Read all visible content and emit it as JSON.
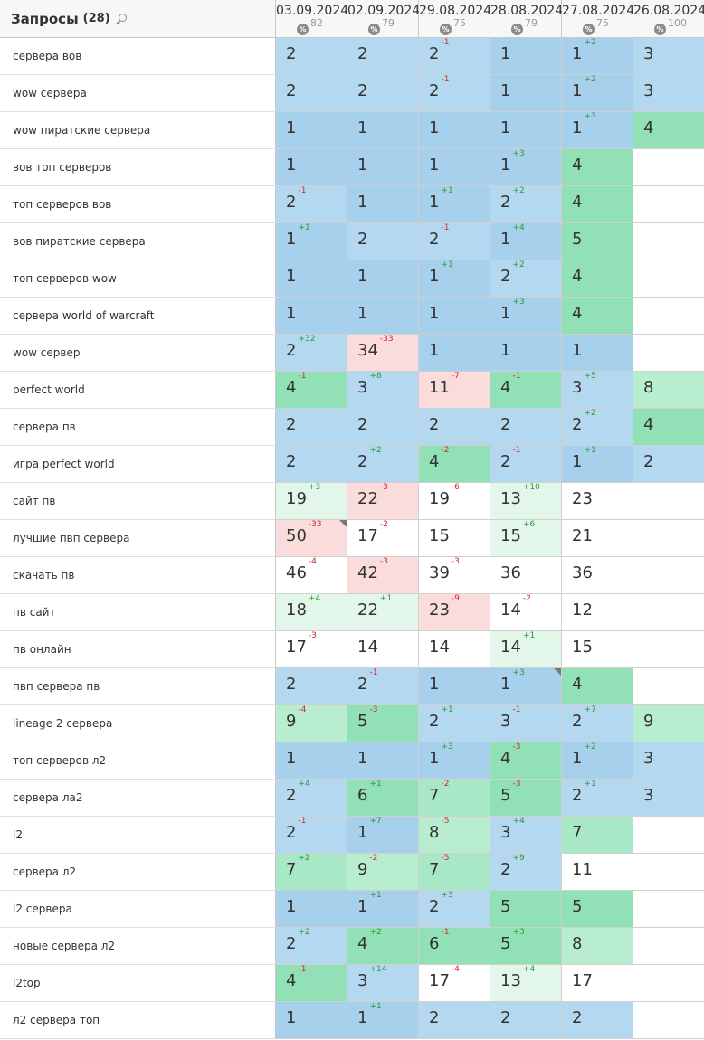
{
  "header": {
    "title": "Запросы",
    "count": "(28)",
    "dates": [
      {
        "date": "03.09.2024",
        "pct": "82"
      },
      {
        "date": "02.09.2024",
        "pct": "79"
      },
      {
        "date": "29.08.2024",
        "pct": "75"
      },
      {
        "date": "28.08.2024",
        "pct": "79"
      },
      {
        "date": "27.08.2024",
        "pct": "75"
      },
      {
        "date": "26.08.2024",
        "pct": "100"
      }
    ]
  },
  "rows": [
    {
      "q": "сервера вов",
      "cells": [
        {
          "v": "2",
          "bg": "c2"
        },
        {
          "v": "2",
          "bg": "c2"
        },
        {
          "v": "2",
          "ch": "-1",
          "dir": "dn",
          "bg": "c2"
        },
        {
          "v": "1",
          "bg": "c1"
        },
        {
          "v": "1",
          "ch": "+2",
          "dir": "up",
          "bg": "c1"
        },
        {
          "v": "3",
          "bg": "c2"
        }
      ]
    },
    {
      "q": "wow сервера",
      "cells": [
        {
          "v": "2",
          "bg": "c2"
        },
        {
          "v": "2",
          "bg": "c2"
        },
        {
          "v": "2",
          "ch": "-1",
          "dir": "dn",
          "bg": "c2"
        },
        {
          "v": "1",
          "bg": "c1"
        },
        {
          "v": "1",
          "ch": "+2",
          "dir": "up",
          "bg": "c1"
        },
        {
          "v": "3",
          "bg": "c2"
        }
      ]
    },
    {
      "q": "wow пиратские сервера",
      "cells": [
        {
          "v": "1",
          "bg": "c1"
        },
        {
          "v": "1",
          "bg": "c1"
        },
        {
          "v": "1",
          "bg": "c1"
        },
        {
          "v": "1",
          "bg": "c1"
        },
        {
          "v": "1",
          "ch": "+3",
          "dir": "up",
          "bg": "c1"
        },
        {
          "v": "4",
          "bg": "c3"
        }
      ]
    },
    {
      "q": "вов топ серверов",
      "cells": [
        {
          "v": "1",
          "bg": "c1"
        },
        {
          "v": "1",
          "bg": "c1"
        },
        {
          "v": "1",
          "bg": "c1"
        },
        {
          "v": "1",
          "ch": "+3",
          "dir": "up",
          "bg": "c1"
        },
        {
          "v": "4",
          "bg": "c3"
        },
        {
          "v": "",
          "bg": "c8"
        }
      ]
    },
    {
      "q": "топ серверов вов",
      "cells": [
        {
          "v": "2",
          "ch": "-1",
          "dir": "dn",
          "bg": "c2"
        },
        {
          "v": "1",
          "bg": "c1"
        },
        {
          "v": "1",
          "ch": "+1",
          "dir": "up",
          "bg": "c1"
        },
        {
          "v": "2",
          "ch": "+2",
          "dir": "up",
          "bg": "c2"
        },
        {
          "v": "4",
          "bg": "c3"
        },
        {
          "v": "",
          "bg": "c8"
        }
      ]
    },
    {
      "q": "вов пиратские сервера",
      "cells": [
        {
          "v": "1",
          "ch": "+1",
          "dir": "up",
          "bg": "c1"
        },
        {
          "v": "2",
          "bg": "c2"
        },
        {
          "v": "2",
          "ch": "-1",
          "dir": "dn",
          "bg": "c2"
        },
        {
          "v": "1",
          "ch": "+4",
          "dir": "up",
          "bg": "c1"
        },
        {
          "v": "5",
          "bg": "c3"
        },
        {
          "v": "",
          "bg": "c8"
        }
      ]
    },
    {
      "q": "топ серверов wow",
      "cells": [
        {
          "v": "1",
          "bg": "c1"
        },
        {
          "v": "1",
          "bg": "c1"
        },
        {
          "v": "1",
          "ch": "+1",
          "dir": "up",
          "bg": "c1"
        },
        {
          "v": "2",
          "ch": "+2",
          "dir": "up",
          "bg": "c2"
        },
        {
          "v": "4",
          "bg": "c3"
        },
        {
          "v": "",
          "bg": "c8"
        }
      ]
    },
    {
      "q": "сервера world of warcraft",
      "cells": [
        {
          "v": "1",
          "bg": "c1"
        },
        {
          "v": "1",
          "bg": "c1"
        },
        {
          "v": "1",
          "bg": "c1"
        },
        {
          "v": "1",
          "ch": "+3",
          "dir": "up",
          "bg": "c1"
        },
        {
          "v": "4",
          "bg": "c3"
        },
        {
          "v": "",
          "bg": "c8"
        }
      ]
    },
    {
      "q": "wow сервер",
      "cells": [
        {
          "v": "2",
          "ch": "+32",
          "dir": "up",
          "bg": "c2"
        },
        {
          "v": "34",
          "ch": "-33",
          "dir": "dn",
          "bg": "c7"
        },
        {
          "v": "1",
          "bg": "c1"
        },
        {
          "v": "1",
          "bg": "c1"
        },
        {
          "v": "1",
          "bg": "c1"
        },
        {
          "v": "",
          "bg": "c8"
        }
      ]
    },
    {
      "q": "perfect world",
      "cells": [
        {
          "v": "4",
          "ch": "-1",
          "dir": "dn",
          "bg": "c3"
        },
        {
          "v": "3",
          "ch": "+8",
          "dir": "up",
          "bg": "c2"
        },
        {
          "v": "11",
          "ch": "-7",
          "dir": "dn",
          "bg": "c7"
        },
        {
          "v": "4",
          "ch": "-1",
          "dir": "dn",
          "bg": "c3"
        },
        {
          "v": "3",
          "ch": "+5",
          "dir": "up",
          "bg": "c2"
        },
        {
          "v": "8",
          "bg": "c5"
        }
      ]
    },
    {
      "q": "сервера пв",
      "cells": [
        {
          "v": "2",
          "bg": "c2"
        },
        {
          "v": "2",
          "bg": "c2"
        },
        {
          "v": "2",
          "bg": "c2"
        },
        {
          "v": "2",
          "bg": "c2"
        },
        {
          "v": "2",
          "ch": "+2",
          "dir": "up",
          "bg": "c2"
        },
        {
          "v": "4",
          "bg": "c3"
        }
      ]
    },
    {
      "q": "игра perfect world",
      "cells": [
        {
          "v": "2",
          "bg": "c2"
        },
        {
          "v": "2",
          "ch": "+2",
          "dir": "up",
          "bg": "c2"
        },
        {
          "v": "4",
          "ch": "-2",
          "dir": "dn",
          "bg": "c3"
        },
        {
          "v": "2",
          "ch": "-1",
          "dir": "dn",
          "bg": "c2"
        },
        {
          "v": "1",
          "ch": "+1",
          "dir": "up",
          "bg": "c1"
        },
        {
          "v": "2",
          "bg": "c2"
        }
      ]
    },
    {
      "q": "сайт пв",
      "cells": [
        {
          "v": "19",
          "ch": "+3",
          "dir": "up",
          "bg": "c6"
        },
        {
          "v": "22",
          "ch": "-3",
          "dir": "dn",
          "bg": "c7"
        },
        {
          "v": "19",
          "ch": "-6",
          "dir": "dn",
          "bg": "c8"
        },
        {
          "v": "13",
          "ch": "+10",
          "dir": "up",
          "bg": "c6"
        },
        {
          "v": "23",
          "bg": "c8"
        },
        {
          "v": "",
          "bg": "c8"
        }
      ]
    },
    {
      "q": "лучшие пвп сервера",
      "cells": [
        {
          "v": "50",
          "ch": "-33",
          "dir": "dn",
          "bg": "c7",
          "corner": true
        },
        {
          "v": "17",
          "ch": "-2",
          "dir": "dn",
          "bg": "c8"
        },
        {
          "v": "15",
          "bg": "c8"
        },
        {
          "v": "15",
          "ch": "+6",
          "dir": "up",
          "bg": "c6"
        },
        {
          "v": "21",
          "bg": "c8"
        },
        {
          "v": "",
          "bg": "c8"
        }
      ]
    },
    {
      "q": "скачать пв",
      "cells": [
        {
          "v": "46",
          "ch": "-4",
          "dir": "dn",
          "bg": "c8"
        },
        {
          "v": "42",
          "ch": "-3",
          "dir": "dn",
          "bg": "c7"
        },
        {
          "v": "39",
          "ch": "-3",
          "dir": "dn",
          "bg": "c8"
        },
        {
          "v": "36",
          "bg": "c8"
        },
        {
          "v": "36",
          "bg": "c8"
        },
        {
          "v": "",
          "bg": "c8"
        }
      ]
    },
    {
      "q": "пв сайт",
      "cells": [
        {
          "v": "18",
          "ch": "+4",
          "dir": "up",
          "bg": "c6"
        },
        {
          "v": "22",
          "ch": "+1",
          "dir": "up",
          "bg": "c6"
        },
        {
          "v": "23",
          "ch": "-9",
          "dir": "dn",
          "bg": "c7"
        },
        {
          "v": "14",
          "ch": "-2",
          "dir": "dn",
          "bg": "c8"
        },
        {
          "v": "12",
          "bg": "c8"
        },
        {
          "v": "",
          "bg": "c8"
        }
      ]
    },
    {
      "q": "пв онлайн",
      "cells": [
        {
          "v": "17",
          "ch": "-3",
          "dir": "dn",
          "bg": "c8"
        },
        {
          "v": "14",
          "bg": "c8"
        },
        {
          "v": "14",
          "bg": "c8"
        },
        {
          "v": "14",
          "ch": "+1",
          "dir": "up",
          "bg": "c6"
        },
        {
          "v": "15",
          "bg": "c8"
        },
        {
          "v": "",
          "bg": "c8"
        }
      ]
    },
    {
      "q": "пвп сервера пв",
      "cells": [
        {
          "v": "2",
          "bg": "c2"
        },
        {
          "v": "2",
          "ch": "-1",
          "dir": "dn",
          "bg": "c2"
        },
        {
          "v": "1",
          "bg": "c1"
        },
        {
          "v": "1",
          "ch": "+3",
          "dir": "up",
          "bg": "c1",
          "corner": true
        },
        {
          "v": "4",
          "bg": "c3"
        },
        {
          "v": "",
          "bg": "c8"
        }
      ]
    },
    {
      "q": "lineage 2 сервера",
      "cells": [
        {
          "v": "9",
          "ch": "-4",
          "dir": "dn",
          "bg": "c5"
        },
        {
          "v": "5",
          "ch": "-3",
          "dir": "dn",
          "bg": "c3"
        },
        {
          "v": "2",
          "ch": "+1",
          "dir": "up",
          "bg": "c2"
        },
        {
          "v": "3",
          "ch": "-1",
          "dir": "dn",
          "bg": "c2"
        },
        {
          "v": "2",
          "ch": "+7",
          "dir": "up",
          "bg": "c2"
        },
        {
          "v": "9",
          "bg": "c5"
        }
      ]
    },
    {
      "q": "топ серверов л2",
      "cells": [
        {
          "v": "1",
          "bg": "c1"
        },
        {
          "v": "1",
          "bg": "c1"
        },
        {
          "v": "1",
          "ch": "+3",
          "dir": "up",
          "bg": "c1"
        },
        {
          "v": "4",
          "ch": "-3",
          "dir": "dn",
          "bg": "c3"
        },
        {
          "v": "1",
          "ch": "+2",
          "dir": "up",
          "bg": "c1"
        },
        {
          "v": "3",
          "bg": "c2"
        }
      ]
    },
    {
      "q": "сервера ла2",
      "cells": [
        {
          "v": "2",
          "ch": "+4",
          "dir": "up",
          "bg": "c2"
        },
        {
          "v": "6",
          "ch": "+1",
          "dir": "up",
          "bg": "c3"
        },
        {
          "v": "7",
          "ch": "-2",
          "dir": "dn",
          "bg": "c4"
        },
        {
          "v": "5",
          "ch": "-3",
          "dir": "dn",
          "bg": "c3"
        },
        {
          "v": "2",
          "ch": "+1",
          "dir": "up",
          "bg": "c2"
        },
        {
          "v": "3",
          "bg": "c2"
        }
      ]
    },
    {
      "q": "l2",
      "cells": [
        {
          "v": "2",
          "ch": "-1",
          "dir": "dn",
          "bg": "c2"
        },
        {
          "v": "1",
          "ch": "+7",
          "dir": "up",
          "bg": "c1"
        },
        {
          "v": "8",
          "ch": "-5",
          "dir": "dn",
          "bg": "c5"
        },
        {
          "v": "3",
          "ch": "+4",
          "dir": "up",
          "bg": "c2"
        },
        {
          "v": "7",
          "bg": "c4"
        },
        {
          "v": "",
          "bg": "c8"
        }
      ]
    },
    {
      "q": "сервера л2",
      "cells": [
        {
          "v": "7",
          "ch": "+2",
          "dir": "up",
          "bg": "c4"
        },
        {
          "v": "9",
          "ch": "-2",
          "dir": "dn",
          "bg": "c5"
        },
        {
          "v": "7",
          "ch": "-5",
          "dir": "dn",
          "bg": "c4"
        },
        {
          "v": "2",
          "ch": "+9",
          "dir": "up",
          "bg": "c2"
        },
        {
          "v": "11",
          "bg": "c8"
        },
        {
          "v": "",
          "bg": "c8"
        }
      ]
    },
    {
      "q": "l2 сервера",
      "cells": [
        {
          "v": "1",
          "bg": "c1"
        },
        {
          "v": "1",
          "ch": "+1",
          "dir": "up",
          "bg": "c1"
        },
        {
          "v": "2",
          "ch": "+3",
          "dir": "up",
          "bg": "c2"
        },
        {
          "v": "5",
          "bg": "c3"
        },
        {
          "v": "5",
          "bg": "c3"
        },
        {
          "v": "",
          "bg": "c8"
        }
      ]
    },
    {
      "q": "новые сервера л2",
      "cells": [
        {
          "v": "2",
          "ch": "+2",
          "dir": "up",
          "bg": "c2"
        },
        {
          "v": "4",
          "ch": "+2",
          "dir": "up",
          "bg": "c3"
        },
        {
          "v": "6",
          "ch": "-1",
          "dir": "dn",
          "bg": "c3"
        },
        {
          "v": "5",
          "ch": "+3",
          "dir": "up",
          "bg": "c3"
        },
        {
          "v": "8",
          "bg": "c5"
        },
        {
          "v": "",
          "bg": "c8"
        }
      ]
    },
    {
      "q": "l2top",
      "cells": [
        {
          "v": "4",
          "ch": "-1",
          "dir": "dn",
          "bg": "c3"
        },
        {
          "v": "3",
          "ch": "+14",
          "dir": "up",
          "bg": "c2"
        },
        {
          "v": "17",
          "ch": "-4",
          "dir": "dn",
          "bg": "c8"
        },
        {
          "v": "13",
          "ch": "+4",
          "dir": "up",
          "bg": "c6"
        },
        {
          "v": "17",
          "bg": "c8"
        },
        {
          "v": "",
          "bg": "c8"
        }
      ]
    },
    {
      "q": "л2 сервера топ",
      "cells": [
        {
          "v": "1",
          "bg": "c1"
        },
        {
          "v": "1",
          "ch": "+1",
          "dir": "up",
          "bg": "c1"
        },
        {
          "v": "2",
          "bg": "c2"
        },
        {
          "v": "2",
          "bg": "c2"
        },
        {
          "v": "2",
          "bg": "c2"
        },
        {
          "v": "",
          "bg": "c8"
        }
      ]
    }
  ],
  "colors": {
    "c1": "#a7d0ec",
    "c2": "#b4d8f0",
    "c3": "#92e0b6",
    "c4": "#a9e8c6",
    "c5": "#b8edd0",
    "c6": "#e3f6ea",
    "c7": "#fbdcdc",
    "c8": "#ffffff",
    "change_up": "#2a9a3a",
    "change_down": "#d0282b"
  },
  "icons": {
    "search": "search-icon",
    "percent": "percent-icon"
  }
}
